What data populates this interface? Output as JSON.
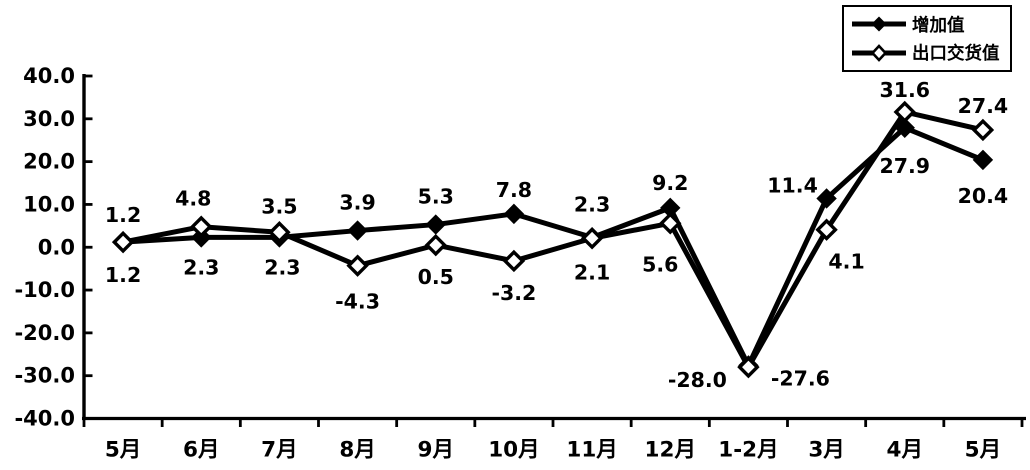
{
  "chart_data": {
    "type": "line",
    "title": "",
    "xlabel": "",
    "ylabel": "",
    "categories": [
      "5月",
      "6月",
      "7月",
      "8月",
      "9月",
      "10月",
      "11月",
      "12月",
      "1-2月",
      "3月",
      "4月",
      "5月"
    ],
    "series": [
      {
        "name": "增加值",
        "marker": "filled-diamond",
        "color": "#000000",
        "values": [
          1.2,
          2.3,
          2.3,
          3.9,
          5.3,
          7.8,
          2.3,
          9.2,
          -27.6,
          11.4,
          27.9,
          20.4
        ],
        "labels": [
          "1.2",
          "2.3",
          "2.3",
          "3.9",
          "5.3",
          "7.8",
          "2.3",
          "9.2",
          "-27.6",
          "11.4",
          "27.9",
          "20.4"
        ],
        "label_offsets": [
          [
            0,
            33
          ],
          [
            0,
            30
          ],
          [
            3,
            30
          ],
          [
            0,
            -28
          ],
          [
            0,
            -28
          ],
          [
            0,
            -24
          ],
          [
            0,
            -33
          ],
          [
            0,
            -25
          ],
          [
            52,
            13
          ],
          [
            -34,
            -13
          ],
          [
            0,
            38
          ],
          [
            0,
            36
          ]
        ]
      },
      {
        "name": "出口交货值",
        "marker": "open-diamond",
        "color": "#000000",
        "values": [
          1.2,
          4.8,
          3.5,
          -4.3,
          0.5,
          -3.2,
          2.1,
          5.6,
          -28.0,
          4.1,
          31.6,
          27.4
        ],
        "labels": [
          "1.2",
          "4.8",
          "3.5",
          "-4.3",
          "0.5",
          "-3.2",
          "2.1",
          "5.6",
          "-28.0",
          "4.1",
          "31.6",
          "27.4"
        ],
        "label_offsets": [
          [
            0,
            -27
          ],
          [
            -8,
            -28
          ],
          [
            0,
            -26
          ],
          [
            0,
            36
          ],
          [
            0,
            32
          ],
          [
            0,
            32
          ],
          [
            0,
            34
          ],
          [
            -10,
            41
          ],
          [
            -51,
            13
          ],
          [
            20,
            32
          ],
          [
            0,
            -22
          ],
          [
            0,
            -24
          ]
        ]
      }
    ],
    "ylim": [
      -40,
      40
    ],
    "ytick_step": 10,
    "ytick_labels": [
      "40.0",
      "30.0",
      "20.0",
      "10.0",
      "0.0",
      "-10.0",
      "-20.0",
      "-30.0",
      "-40.0"
    ],
    "grid": false,
    "legend_position": "top-right",
    "colors": {
      "line": "#000000",
      "background": "#ffffff",
      "text": "#000000"
    }
  }
}
